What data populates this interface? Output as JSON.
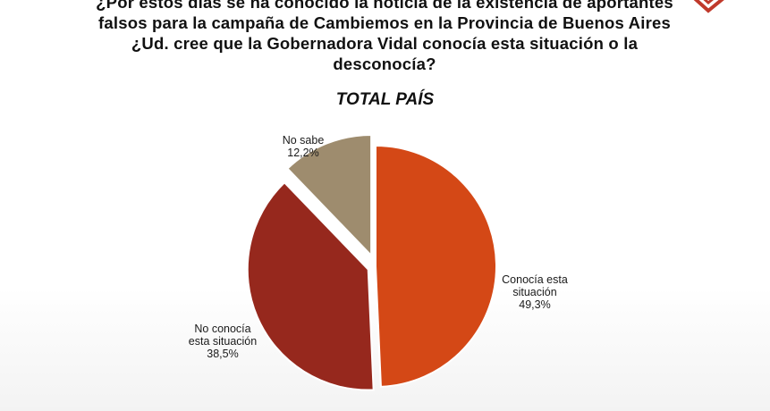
{
  "question_lines": [
    "¿Por estos días se ha conocido la noticia de la existencia de aportantes",
    "falsos para la campaña de Cambiemos en la Provincia de Buenos Aires",
    "¿Ud. cree que la Gobernadora Vidal conocía esta situación o la",
    "desconocía?"
  ],
  "subtitle": "TOTAL PAÍS",
  "colors": {
    "conocia": "#D44816",
    "no_conocia": "#96281D",
    "no_sabe": "#9E8C6E",
    "logo": "#C0392B"
  },
  "chart_data": {
    "type": "pie",
    "title": "",
    "slices": [
      {
        "label_lines": [
          "Conocía esta",
          "situación"
        ],
        "value_label": "49,3%",
        "value": 49.3,
        "color": "#D44816"
      },
      {
        "label_lines": [
          "No conocía",
          "esta situación"
        ],
        "value_label": "38,5%",
        "value": 38.5,
        "color": "#96281D"
      },
      {
        "label_lines": [
          "No sabe"
        ],
        "value_label": "12,2%",
        "value": 12.2,
        "color": "#9E8C6E"
      }
    ],
    "exploded": [
      false,
      true,
      true
    ],
    "start": "12 o'clock, clockwise",
    "legend": "none (labels beside slices)"
  }
}
